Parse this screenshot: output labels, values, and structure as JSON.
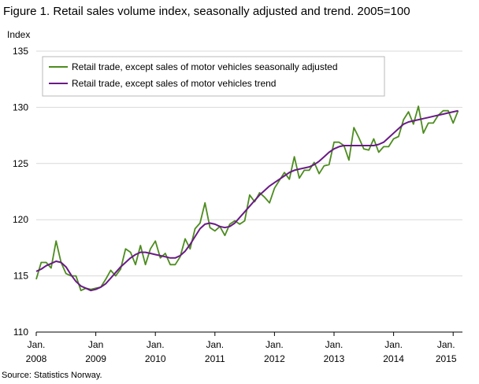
{
  "figure": {
    "title": "Figure 1. Retail sales volume index, seasonally adjusted and trend. 2005=100",
    "source": "Source: Statistics Norway."
  },
  "chart_data": {
    "type": "line",
    "title": "Figure 1. Retail sales volume index, seasonally adjusted and trend. 2005=100",
    "xlabel": "",
    "ylabel": "Index",
    "ylim": [
      110,
      135
    ],
    "yticks": [
      110,
      115,
      120,
      125,
      130,
      135
    ],
    "x_tick_labels": [
      {
        "line1": "Jan.",
        "line2": "2008"
      },
      {
        "line1": "Jan",
        "line2": "2009"
      },
      {
        "line1": "Jan.",
        "line2": "2010"
      },
      {
        "line1": "Jan.",
        "line2": "2011"
      },
      {
        "line1": "Jan.",
        "line2": "2012"
      },
      {
        "line1": "Jan.",
        "line2": "2013"
      },
      {
        "line1": "Jan.",
        "line2": "2014"
      },
      {
        "line1": "Jan.",
        "line2": "2015"
      }
    ],
    "x_start": "2008-01",
    "grid": "horizontal",
    "legend_position": "top-left",
    "series": [
      {
        "name": "Retail trade, except sales of motor vehicles seasonally adjusted",
        "color": "#4d8c1f",
        "values": [
          114.7,
          116.2,
          116.2,
          115.7,
          118.1,
          116.2,
          115.2,
          115.0,
          115.0,
          113.7,
          113.9,
          113.8,
          113.9,
          114.0,
          114.7,
          115.5,
          115.0,
          115.6,
          117.4,
          117.1,
          116.0,
          117.7,
          116.0,
          117.4,
          118.1,
          116.6,
          117.0,
          116.0,
          116.0,
          116.7,
          118.3,
          117.4,
          119.2,
          119.7,
          121.5,
          119.3,
          119.0,
          119.4,
          118.6,
          119.6,
          119.9,
          119.6,
          119.9,
          122.2,
          121.6,
          122.4,
          122.0,
          121.5,
          122.8,
          123.5,
          124.2,
          123.6,
          125.6,
          123.7,
          124.4,
          124.4,
          125.1,
          124.1,
          124.8,
          124.9,
          126.9,
          126.9,
          126.6,
          125.3,
          128.2,
          127.3,
          126.3,
          126.2,
          127.2,
          126.0,
          126.5,
          126.5,
          127.2,
          127.4,
          128.9,
          129.6,
          128.5,
          130.1,
          127.7,
          128.6,
          128.6,
          129.3,
          129.7,
          129.7,
          128.6,
          129.7
        ]
      },
      {
        "name": "Retail trade, except sales of motor vehicles trend",
        "color": "#6a1a86",
        "values": [
          115.4,
          115.6,
          115.9,
          116.1,
          116.3,
          116.2,
          115.8,
          115.1,
          114.5,
          114.1,
          113.9,
          113.7,
          113.8,
          114.0,
          114.3,
          114.8,
          115.3,
          115.8,
          116.2,
          116.6,
          116.9,
          117.1,
          117.1,
          117.0,
          116.9,
          116.8,
          116.7,
          116.6,
          116.6,
          116.8,
          117.2,
          117.8,
          118.5,
          119.2,
          119.6,
          119.7,
          119.6,
          119.4,
          119.3,
          119.4,
          119.7,
          120.2,
          120.7,
          121.2,
          121.7,
          122.2,
          122.6,
          123.0,
          123.3,
          123.6,
          123.9,
          124.2,
          124.4,
          124.5,
          124.6,
          124.7,
          124.9,
          125.2,
          125.6,
          126.0,
          126.3,
          126.5,
          126.6,
          126.6,
          126.6,
          126.6,
          126.6,
          126.6,
          126.6,
          126.7,
          126.9,
          127.3,
          127.7,
          128.1,
          128.5,
          128.7,
          128.8,
          128.9,
          129.0,
          129.1,
          129.2,
          129.3,
          129.4,
          129.5,
          129.6,
          129.7
        ]
      }
    ]
  }
}
